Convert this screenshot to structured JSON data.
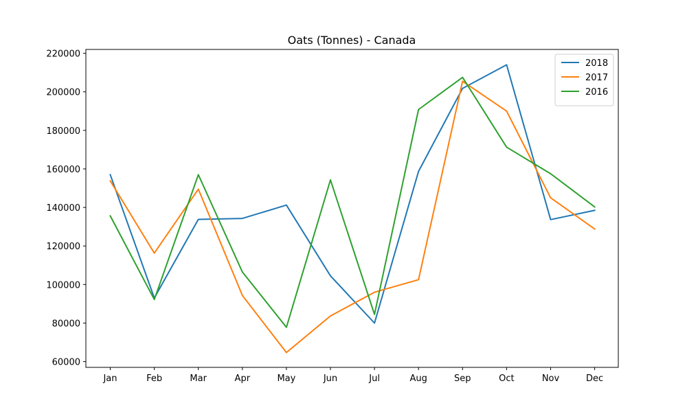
{
  "chart_data": {
    "type": "line",
    "title": "Oats (Tonnes) - Canada",
    "xlabel": "",
    "ylabel": "",
    "categories": [
      "Jan",
      "Feb",
      "Mar",
      "Apr",
      "May",
      "Jun",
      "Jul",
      "Aug",
      "Sep",
      "Oct",
      "Nov",
      "Dec"
    ],
    "ylim": [
      57000,
      222000
    ],
    "yticks": [
      60000,
      80000,
      100000,
      120000,
      140000,
      160000,
      180000,
      200000,
      220000
    ],
    "ytick_labels": [
      "60000",
      "80000",
      "100000",
      "120000",
      "140000",
      "160000",
      "180000",
      "200000",
      "220000"
    ],
    "grid": false,
    "legend_position": "top-right",
    "series": [
      {
        "name": "2018",
        "color": "#1f77b4",
        "values": [
          157000,
          93000,
          133800,
          134300,
          141200,
          104500,
          80000,
          158700,
          201800,
          214000,
          133700,
          138500
        ]
      },
      {
        "name": "2017",
        "color": "#ff7f0e",
        "values": [
          153800,
          116300,
          149500,
          94300,
          64700,
          83700,
          96000,
          102500,
          205500,
          190000,
          145000,
          128800
        ]
      },
      {
        "name": "2016",
        "color": "#2ca02c",
        "values": [
          135600,
          92200,
          157000,
          106500,
          77800,
          154300,
          84500,
          190800,
          207500,
          171300,
          157500,
          140300
        ]
      }
    ]
  }
}
